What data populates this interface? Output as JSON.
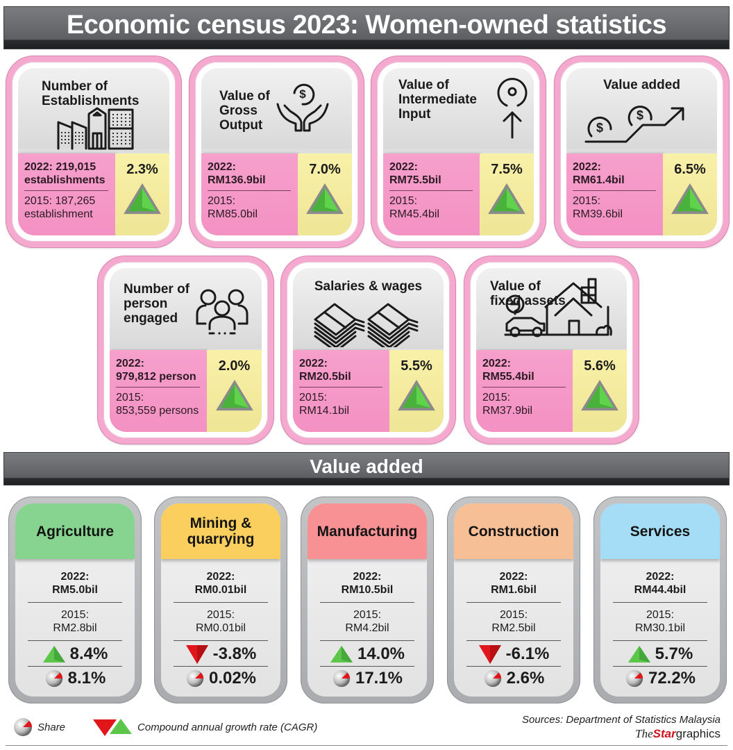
{
  "title": "Economic census 2023: Women-owned statistics",
  "metrics": [
    {
      "title": "Number of\nEstablishments",
      "icon": "buildings-icon",
      "v2022": "2022: 219,015 establishments",
      "v2015": "2015: 187,265 establishment",
      "cagr": "2.3%"
    },
    {
      "title": "Value of\nGross\nOutput",
      "icon": "hands-coin-icon",
      "v2022": "2022:\nRM136.9bil",
      "v2015": "2015:\nRM85.0bil",
      "cagr": "7.0%"
    },
    {
      "title": "Value of\nIntermediate\nInput",
      "icon": "input-arrow-icon",
      "v2022": "2022:\nRM75.5bil",
      "v2015": "2015:\nRM45.4bil",
      "cagr": "7.5%"
    },
    {
      "title": "Value added",
      "icon": "coins-growth-icon",
      "v2022": "2022:\nRM61.4bil",
      "v2015": "2015:\nRM39.6bil",
      "cagr": "6.5%"
    },
    {
      "title": "Number of\nperson\nengaged",
      "icon": "people-icon",
      "v2022": "2022:\n979,812 person",
      "v2015": "2015:\n853,559 persons",
      "cagr": "2.0%"
    },
    {
      "title": "Salaries & wages",
      "icon": "money-stacks-icon",
      "v2022": "2022:\nRM20.5bil",
      "v2015": "2015:\nRM14.1bil",
      "cagr": "5.5%"
    },
    {
      "title": "Value of\nfixed assets",
      "icon": "house-car-icon",
      "v2022": "2022:\nRM55.4bil",
      "v2015": "2015:\nRM37.9bil",
      "cagr": "5.6%"
    }
  ],
  "value_added_title": "Value added",
  "sectors": [
    {
      "name": "Agriculture",
      "color": "#86d48f",
      "v2022": "2022:\nRM5.0bil",
      "v2015": "2015:\nRM2.8bil",
      "cagr": "8.4%",
      "direction": "up",
      "share": "8.1%"
    },
    {
      "name": "Mining &\nquarrying",
      "color": "#fbcf5e",
      "v2022": "2022:\nRM0.01bil",
      "v2015": "2015:\nRM0.01bil",
      "cagr": "-3.8%",
      "direction": "down",
      "share": "0.02%"
    },
    {
      "name": "Manufacturing",
      "color": "#f79193",
      "v2022": "2022:\nRM10.5bil",
      "v2015": "2015:\nRM4.2bil",
      "cagr": "14.0%",
      "direction": "up",
      "share": "17.1%"
    },
    {
      "name": "Construction",
      "color": "#f7bf95",
      "v2022": "2022:\nRM1.6bil",
      "v2015": "2015:\nRM2.5bil",
      "cagr": "-6.1%",
      "direction": "down",
      "share": "2.6%"
    },
    {
      "name": "Services",
      "color": "#a6ddf6",
      "v2022": "2022:\nRM44.4bil",
      "v2015": "2015:\nRM30.1bil",
      "cagr": "5.7%",
      "direction": "up",
      "share": "72.2%"
    }
  ],
  "legend": {
    "share": "Share",
    "cagr": "Compound annual growth rate (CAGR)"
  },
  "source": "Sources: Department of Statistics Malaysia",
  "brand": {
    "the": "The",
    "star": "Star",
    "graphics": "graphics"
  },
  "colors": {
    "pink": "#f6a9cf",
    "yellow": "#f8f1a8",
    "banner": "#66686c",
    "up": "#5cc64a",
    "down": "#e0161b"
  }
}
